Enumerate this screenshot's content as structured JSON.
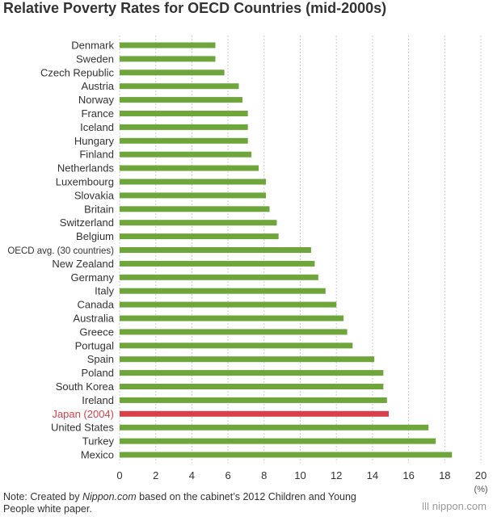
{
  "chart_data": {
    "type": "bar",
    "orientation": "horizontal",
    "title": "Relative Poverty Rates for OECD Countries (mid-2000s)",
    "unit": "(%)",
    "xlim": [
      0,
      20
    ],
    "ticks": [
      "0",
      "2",
      "4",
      "6",
      "8",
      "10",
      "12",
      "14",
      "16",
      "18",
      "20"
    ],
    "bar_color": "#6ea63c",
    "highlight_color": "#d9404a",
    "grid": true,
    "categories": [
      "Denmark",
      "Sweden",
      "Czech Republic",
      "Austria",
      "Norway",
      "France",
      "Iceland",
      "Hungary",
      "Finland",
      "Netherlands",
      "Luxembourg",
      "Slovakia",
      "Britain",
      "Switzerland",
      "Belgium",
      "OECD avg. (30 countries)",
      "New Zealand",
      "Germany",
      "Italy",
      "Canada",
      "Australia",
      "Greece",
      "Portugal",
      "Spain",
      "Poland",
      "South Korea",
      "Ireland",
      "Japan (2004)",
      "United States",
      "Turkey",
      "Mexico"
    ],
    "values": [
      5.3,
      5.3,
      5.8,
      6.6,
      6.8,
      7.1,
      7.1,
      7.1,
      7.3,
      7.7,
      8.1,
      8.1,
      8.3,
      8.7,
      8.8,
      10.6,
      10.8,
      11.0,
      11.4,
      12.0,
      12.4,
      12.6,
      12.9,
      14.1,
      14.6,
      14.6,
      14.8,
      14.9,
      17.1,
      17.5,
      18.4
    ],
    "highlight": "Japan (2004)"
  },
  "note": {
    "prefix": "Note: Created by ",
    "source": "Nippon.com",
    "suffix": " based on the cabinet’s 2012 Children and Young People white paper."
  },
  "brand": "nippon.com"
}
